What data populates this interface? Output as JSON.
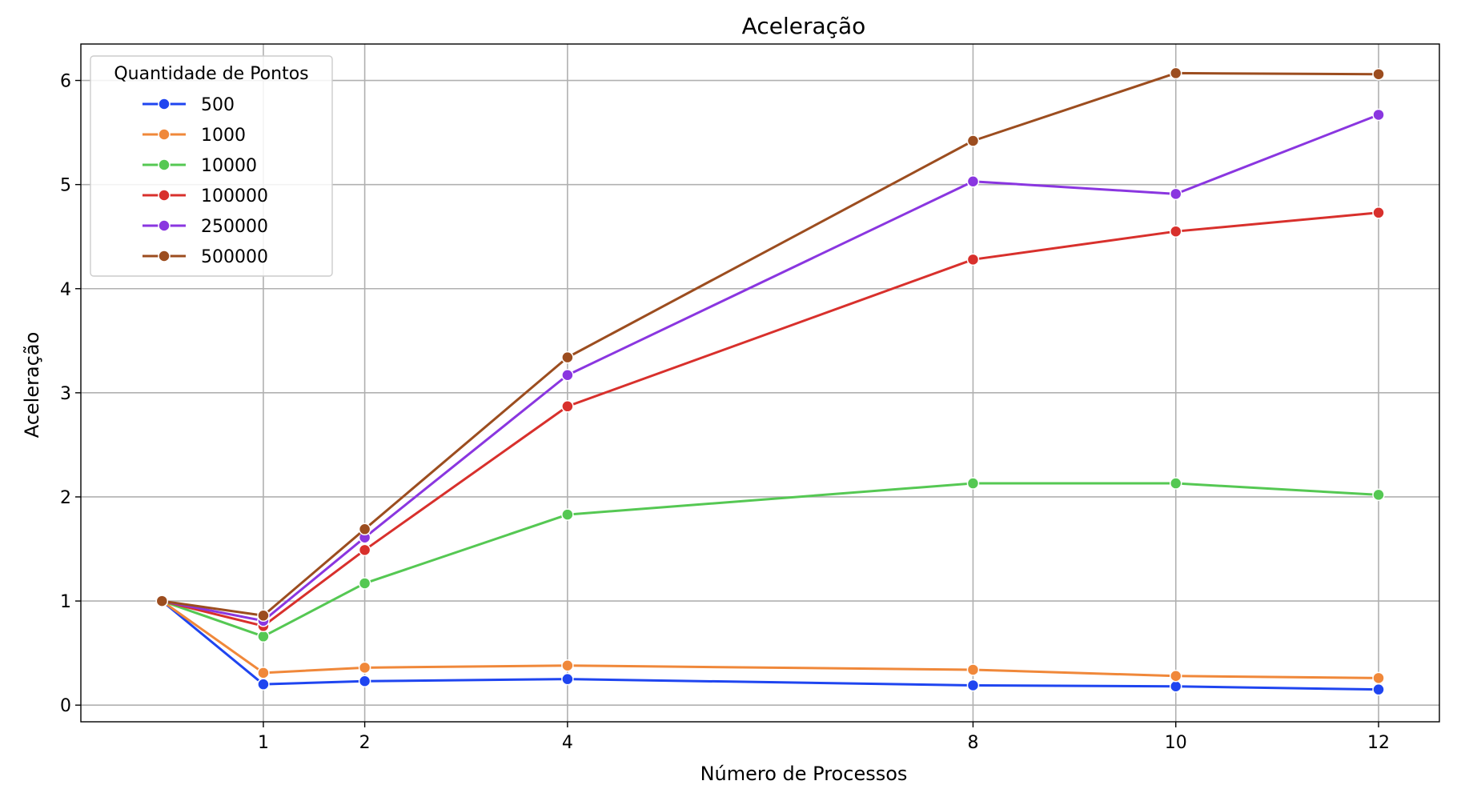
{
  "chart_data": {
    "type": "line",
    "title": "Aceleração",
    "xlabel": "Número de Processos",
    "ylabel": "Aceleração",
    "xlim": [
      -0.8,
      12.6
    ],
    "ylim": [
      -0.16,
      6.35
    ],
    "xticks": [
      1,
      2,
      4,
      8,
      10,
      12
    ],
    "yticks": [
      0,
      1,
      2,
      3,
      4,
      5,
      6
    ],
    "grid": true,
    "legend": {
      "title": "Quantidade de Pontos",
      "placement": "top-left"
    },
    "x": [
      0,
      1,
      2,
      4,
      8,
      10,
      12
    ],
    "series": [
      {
        "name": "500",
        "color": "#1f45f0",
        "values": [
          1.0,
          0.2,
          0.23,
          0.25,
          0.19,
          0.18,
          0.15
        ]
      },
      {
        "name": "1000",
        "color": "#f0883a",
        "values": [
          1.0,
          0.31,
          0.36,
          0.38,
          0.34,
          0.28,
          0.26
        ]
      },
      {
        "name": "10000",
        "color": "#55c853",
        "values": [
          1.0,
          0.66,
          1.17,
          1.83,
          2.13,
          2.13,
          2.02
        ]
      },
      {
        "name": "100000",
        "color": "#d8302c",
        "values": [
          1.0,
          0.76,
          1.49,
          2.87,
          4.28,
          4.55,
          4.73
        ]
      },
      {
        "name": "250000",
        "color": "#8a36e0",
        "values": [
          1.0,
          0.81,
          1.61,
          3.17,
          5.03,
          4.91,
          5.67
        ]
      },
      {
        "name": "500000",
        "color": "#9c4d1f",
        "values": [
          1.0,
          0.86,
          1.69,
          3.34,
          5.42,
          6.07,
          6.06
        ]
      }
    ]
  }
}
